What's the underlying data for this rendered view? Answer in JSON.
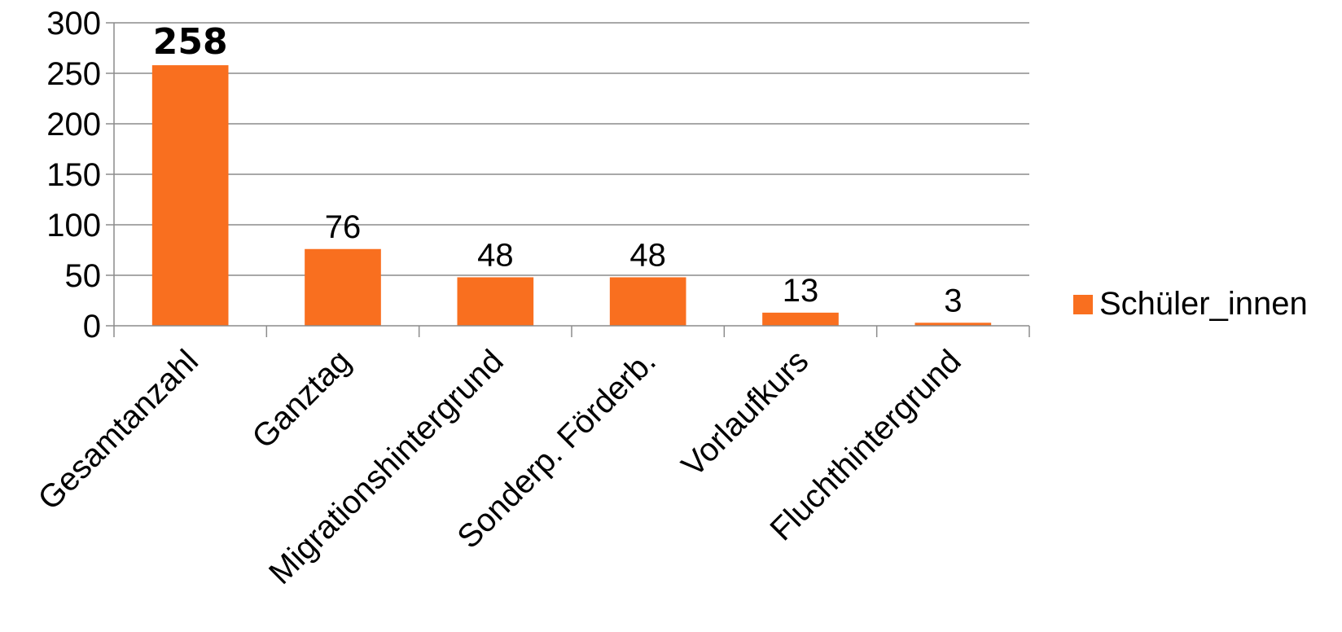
{
  "chart_data": {
    "type": "bar",
    "categories": [
      "Gesamtanzahl",
      "Ganztag",
      "Migrationshintergrund",
      "Sonderp. Förderb.",
      "Vorlaufkurs",
      "Fluchthintergrund"
    ],
    "series": [
      {
        "name": "Schüler_innen",
        "values": [
          258,
          76,
          48,
          48,
          13,
          3
        ],
        "data_labels": [
          "258",
          "76",
          "48",
          "48",
          "13",
          "3"
        ],
        "color": "#F96F1F"
      }
    ],
    "ylim": [
      0,
      300
    ],
    "yticks": [
      0,
      50,
      100,
      150,
      200,
      250,
      300
    ],
    "ytick_labels": [
      "0",
      "50",
      "100",
      "150",
      "200",
      "250",
      "300"
    ],
    "grid": true,
    "gridline_color": "#8c8c8c",
    "legend_position": "right",
    "emphasized_labels": [
      0
    ],
    "xtick_rotation_deg": -45
  }
}
